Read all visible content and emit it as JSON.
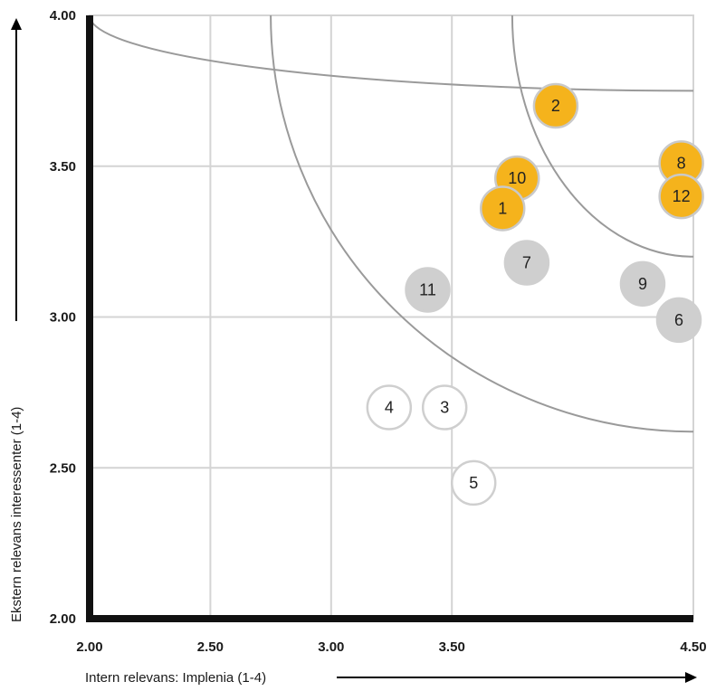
{
  "chart_data": {
    "type": "scatter",
    "title": "",
    "xlabel": "Intern relevans: Implenia (1-4)",
    "ylabel": "Ekstern relevans interessenter (1-4)",
    "xlim": [
      2.0,
      4.5
    ],
    "ylim": [
      2.0,
      4.0
    ],
    "x_ticks": [
      "2.00",
      "2.50",
      "3.00",
      "3.50",
      "4.50"
    ],
    "x_tick_values": [
      2.0,
      2.5,
      3.0,
      3.5,
      4.5
    ],
    "y_ticks": [
      "4.00",
      "3.50",
      "3.00",
      "2.50",
      "2.00"
    ],
    "y_tick_values": [
      4.0,
      3.5,
      3.0,
      2.5,
      2.0
    ],
    "grid": true,
    "vertical_gridlines": [
      2.5,
      3.0,
      3.5
    ],
    "horizontal_gridlines": [
      2.5,
      3.0,
      3.5
    ],
    "threshold_curves": [
      {
        "x_start": 2.0,
        "y_start": 3.75
      },
      {
        "x_start": 2.75,
        "y_start": 2.62
      },
      {
        "x_start": 3.75,
        "y_start": 3.2
      }
    ],
    "categories": {
      "high": {
        "color": "#F5B31C",
        "stroke": "#C9C9C9"
      },
      "medium": {
        "color": "#CFCFCF",
        "stroke": "#CFCFCF"
      },
      "low": {
        "color": "#FFFFFF",
        "stroke": "#CFCFCF"
      }
    },
    "points": [
      {
        "label": "2",
        "x": 3.93,
        "y": 3.7,
        "category": "high"
      },
      {
        "label": "8",
        "x": 4.45,
        "y": 3.51,
        "category": "high"
      },
      {
        "label": "10",
        "x": 3.77,
        "y": 3.46,
        "category": "high"
      },
      {
        "label": "12",
        "x": 4.45,
        "y": 3.4,
        "category": "high"
      },
      {
        "label": "1",
        "x": 3.71,
        "y": 3.36,
        "category": "high"
      },
      {
        "label": "7",
        "x": 3.81,
        "y": 3.18,
        "category": "medium"
      },
      {
        "label": "11",
        "x": 3.4,
        "y": 3.09,
        "category": "medium"
      },
      {
        "label": "9",
        "x": 4.29,
        "y": 3.11,
        "category": "medium"
      },
      {
        "label": "6",
        "x": 4.44,
        "y": 2.99,
        "category": "medium"
      },
      {
        "label": "4",
        "x": 3.24,
        "y": 2.7,
        "category": "low"
      },
      {
        "label": "3",
        "x": 3.47,
        "y": 2.7,
        "category": "low"
      },
      {
        "label": "5",
        "x": 3.59,
        "y": 2.45,
        "category": "low"
      }
    ]
  }
}
